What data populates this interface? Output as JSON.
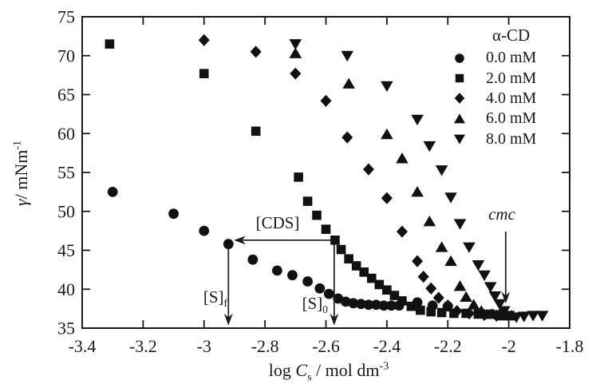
{
  "colors": {
    "ink": "#1a1a1a",
    "marker": "#111111",
    "background": "#ffffff"
  },
  "chart_data": {
    "type": "scatter",
    "title": "",
    "xlabel": "log Cs / mol dm^-3",
    "ylabel": "gamma / mNm^-1",
    "xlabel_parts": {
      "pre": "log ",
      "var": "C",
      "sub": "s",
      "mid": " / mol dm",
      "sup": "-3"
    },
    "ylabel_parts": {
      "var": "γ",
      "rest": "/ mNm",
      "sup": "-1"
    },
    "xlim": [
      -3.4,
      -1.8
    ],
    "ylim": [
      35,
      75
    ],
    "grid": false,
    "x_ticks": [
      "-3.4",
      "-3.2",
      "-3",
      "-2.8",
      "-2.6",
      "-2.4",
      "-2.2",
      "-2",
      "-1.8"
    ],
    "y_ticks": [
      "35",
      "40",
      "45",
      "50",
      "55",
      "60",
      "65",
      "70",
      "75"
    ],
    "legend": {
      "title": "α-CD",
      "position": "top-right",
      "items": [
        {
          "marker": "circle",
          "label": "0.0 mM"
        },
        {
          "marker": "square",
          "label": "2.0 mM"
        },
        {
          "marker": "diamond",
          "label": "4.0 mM"
        },
        {
          "marker": "triangle-up",
          "label": "6.0 mM"
        },
        {
          "marker": "triangle-down",
          "label": "8.0 mM"
        }
      ]
    },
    "series": [
      {
        "name": "0.0 mM",
        "marker": "circle",
        "points": [
          [
            -3.3,
            52.5
          ],
          [
            -3.1,
            49.7
          ],
          [
            -3.0,
            47.5
          ],
          [
            -2.92,
            45.8
          ],
          [
            -2.84,
            43.8
          ],
          [
            -2.76,
            42.4
          ],
          [
            -2.71,
            41.8
          ],
          [
            -2.66,
            41.0
          ],
          [
            -2.62,
            40.1
          ],
          [
            -2.59,
            39.4
          ],
          [
            -2.56,
            38.8
          ],
          [
            -2.535,
            38.4
          ],
          [
            -2.51,
            38.2
          ],
          [
            -2.485,
            38.1
          ],
          [
            -2.46,
            38.0
          ],
          [
            -2.435,
            38.0
          ],
          [
            -2.41,
            37.9
          ],
          [
            -2.385,
            37.9
          ],
          [
            -2.36,
            37.9
          ],
          [
            -2.3,
            38.3
          ],
          [
            -2.25,
            37.9
          ],
          [
            -2.2,
            37.8
          ]
        ]
      },
      {
        "name": "2.0 mM",
        "marker": "square",
        "points": [
          [
            -3.31,
            71.5
          ],
          [
            -3.0,
            67.7
          ],
          [
            -2.83,
            60.3
          ],
          [
            -2.69,
            54.4
          ],
          [
            -2.66,
            51.3
          ],
          [
            -2.63,
            49.5
          ],
          [
            -2.6,
            47.7
          ],
          [
            -2.57,
            46.3
          ],
          [
            -2.55,
            45.1
          ],
          [
            -2.525,
            43.9
          ],
          [
            -2.5,
            43.0
          ],
          [
            -2.475,
            42.2
          ],
          [
            -2.45,
            41.4
          ],
          [
            -2.425,
            40.6
          ],
          [
            -2.4,
            39.9
          ],
          [
            -2.375,
            39.2
          ],
          [
            -2.35,
            38.5
          ],
          [
            -2.32,
            37.8
          ],
          [
            -2.29,
            37.3
          ],
          [
            -2.255,
            37.1
          ],
          [
            -2.22,
            37.0
          ],
          [
            -2.18,
            36.9
          ],
          [
            -2.14,
            36.9
          ],
          [
            -2.1,
            36.8
          ],
          [
            -2.06,
            36.8
          ],
          [
            -2.02,
            36.8
          ]
        ]
      },
      {
        "name": "4.0 mM",
        "marker": "diamond",
        "points": [
          [
            -3.0,
            72.0
          ],
          [
            -2.83,
            70.5
          ],
          [
            -2.7,
            67.7
          ],
          [
            -2.6,
            64.2
          ],
          [
            -2.53,
            59.5
          ],
          [
            -2.46,
            55.4
          ],
          [
            -2.4,
            51.7
          ],
          [
            -2.35,
            47.4
          ],
          [
            -2.3,
            43.6
          ],
          [
            -2.28,
            41.6
          ],
          [
            -2.255,
            40.1
          ],
          [
            -2.23,
            38.9
          ],
          [
            -2.2,
            37.9
          ],
          [
            -2.17,
            37.2
          ],
          [
            -2.13,
            36.9
          ],
          [
            -2.08,
            36.7
          ],
          [
            -2.04,
            36.6
          ]
        ]
      },
      {
        "name": "6.0 mM",
        "marker": "triangle-up",
        "points": [
          [
            -2.7,
            70.3
          ],
          [
            -2.525,
            66.4
          ],
          [
            -2.4,
            59.9
          ],
          [
            -2.35,
            56.8
          ],
          [
            -2.3,
            52.5
          ],
          [
            -2.26,
            48.7
          ],
          [
            -2.22,
            45.4
          ],
          [
            -2.19,
            43.6
          ],
          [
            -2.16,
            40.4
          ],
          [
            -2.14,
            39.0
          ],
          [
            -2.115,
            38.0
          ],
          [
            -2.09,
            37.2
          ],
          [
            -2.055,
            36.8
          ],
          [
            -2.02,
            36.6
          ],
          [
            -1.99,
            36.6
          ]
        ]
      },
      {
        "name": "8.0 mM",
        "marker": "triangle-down",
        "points": [
          [
            -2.7,
            71.5
          ],
          [
            -2.53,
            70.0
          ],
          [
            -2.4,
            66.1
          ],
          [
            -2.3,
            61.8
          ],
          [
            -2.26,
            58.4
          ],
          [
            -2.22,
            55.3
          ],
          [
            -2.19,
            51.8
          ],
          [
            -2.16,
            48.4
          ],
          [
            -2.13,
            45.4
          ],
          [
            -2.1,
            43.1
          ],
          [
            -2.08,
            41.8
          ],
          [
            -2.06,
            40.3
          ],
          [
            -2.045,
            39.1
          ],
          [
            -2.03,
            38.1
          ],
          [
            -2.015,
            37.2
          ],
          [
            -2.0,
            36.6
          ],
          [
            -1.975,
            36.4
          ],
          [
            -1.95,
            36.5
          ],
          [
            -1.92,
            36.6
          ],
          [
            -1.89,
            36.6
          ]
        ]
      }
    ]
  },
  "annotations": {
    "cds": {
      "text": "[CDS]"
    },
    "sf": {
      "text": "[S]",
      "sub": "f"
    },
    "s0": {
      "text": "[S]",
      "sub": "0"
    },
    "cmc": {
      "text": "cmc"
    },
    "arrows": [
      {
        "type": "h",
        "y": 46.3,
        "x_from": -2.573,
        "x_to": -2.902,
        "head": "left"
      },
      {
        "type": "v",
        "x": -2.92,
        "y_from": 45.2,
        "y_to": 35.35,
        "head": "down"
      },
      {
        "type": "v",
        "x": -2.573,
        "y_from": 46.3,
        "y_to": 35.35,
        "head": "down"
      },
      {
        "type": "v",
        "x": -2.01,
        "y_from": 47.4,
        "y_to": 38.15,
        "head": "down"
      }
    ]
  }
}
